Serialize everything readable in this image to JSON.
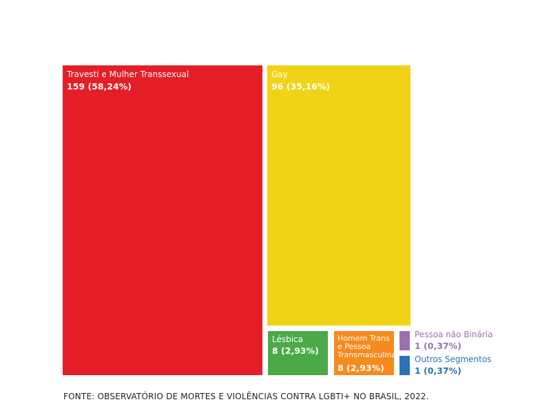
{
  "chart_data": {
    "type": "treemap",
    "title": "",
    "items": [
      {
        "name": "Travesti e Mulher Transsexual",
        "value": 159,
        "percent": "58,24%",
        "value_label": "159 (58,24%)",
        "color": "#e31e26"
      },
      {
        "name": "Gay",
        "value": 96,
        "percent": "35,16%",
        "value_label": "96 (35,16%)",
        "color": "#f0d316"
      },
      {
        "name": "Lésbica",
        "value": 8,
        "percent": "2,93%",
        "value_label": "8 (2,93%)",
        "color": "#4ca948"
      },
      {
        "name": "Homem Trans e Pessoa Transmasculina",
        "name_lines": [
          "Homem Trans",
          "e Pessoa",
          "Transmasculina"
        ],
        "value": 8,
        "percent": "2,93%",
        "value_label": "8 (2,93%)",
        "color": "#f68a1e"
      },
      {
        "name": "Pessoa não Binária",
        "value": 1,
        "percent": "0,37%",
        "value_label": "1 (0,37%)",
        "color": "#9c6fb0"
      },
      {
        "name": "Outros Segmentos",
        "value": 1,
        "percent": "0,37%",
        "value_label": "1 (0,37%)",
        "color": "#2b72b8"
      }
    ]
  },
  "footer": {
    "source": "FONTE: OBSERVATÓRIO DE MORTES E VIOLÊNCIAS CONTRA LGBTI+ NO BRASIL, 2022."
  }
}
